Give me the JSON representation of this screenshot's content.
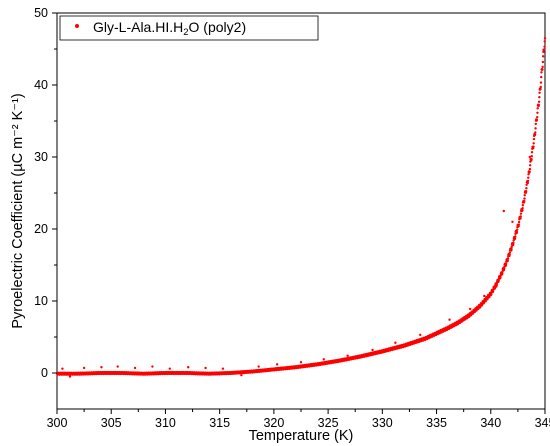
{
  "chart_data": {
    "type": "scatter",
    "title": "",
    "xlabel": "Temperature (K)",
    "ylabel": "Pyroelectric Coefficient (µC m⁻² K⁻¹)",
    "xlim": [
      300,
      345
    ],
    "ylim": [
      -5,
      50
    ],
    "xticks": [
      300,
      305,
      310,
      315,
      320,
      325,
      330,
      335,
      340,
      345
    ],
    "yticks": [
      0,
      10,
      20,
      30,
      40,
      50
    ],
    "grid": false,
    "legend_position": "top-left",
    "color": "#ff0000",
    "series": [
      {
        "name": "Gly-L-Ala.HI.H2O (poly2)",
        "x": [
          300,
          302,
          304,
          306,
          308,
          310,
          312,
          314,
          316,
          318,
          320,
          322,
          324,
          326,
          328,
          330,
          332,
          334,
          335,
          336,
          337,
          338,
          339,
          340,
          340.5,
          341,
          341.5,
          342,
          342.5,
          343,
          343.5,
          344,
          344.5,
          345
        ],
        "y": [
          -0.1,
          -0.1,
          0.0,
          0.0,
          -0.1,
          0.0,
          0.0,
          -0.1,
          0.0,
          0.2,
          0.5,
          0.8,
          1.2,
          1.7,
          2.3,
          3.0,
          3.8,
          4.8,
          5.5,
          6.2,
          7.0,
          8.0,
          9.3,
          11.0,
          12.3,
          13.8,
          15.6,
          17.8,
          20.3,
          23.5,
          27.5,
          32.5,
          38.5,
          46.5
        ]
      }
    ],
    "outliers": {
      "x": [
        300.5,
        301.2,
        302.5,
        304.1,
        305.6,
        307.2,
        308.8,
        310.4,
        312.1,
        313.7,
        315.3,
        317.0,
        318.6,
        320.3,
        322.5,
        324.6,
        326.8,
        329.1,
        331.2,
        333.5,
        336.2,
        338.1,
        339.4,
        340.5,
        341.2,
        342.0,
        343.6
      ],
      "y": [
        0.6,
        -0.5,
        0.7,
        0.8,
        0.9,
        0.7,
        0.9,
        0.6,
        0.8,
        0.7,
        0.6,
        -0.3,
        0.9,
        1.2,
        1.5,
        1.9,
        2.4,
        3.2,
        4.2,
        5.3,
        7.4,
        8.9,
        10.7,
        12.0,
        22.5,
        21.0,
        30.0
      ]
    }
  }
}
